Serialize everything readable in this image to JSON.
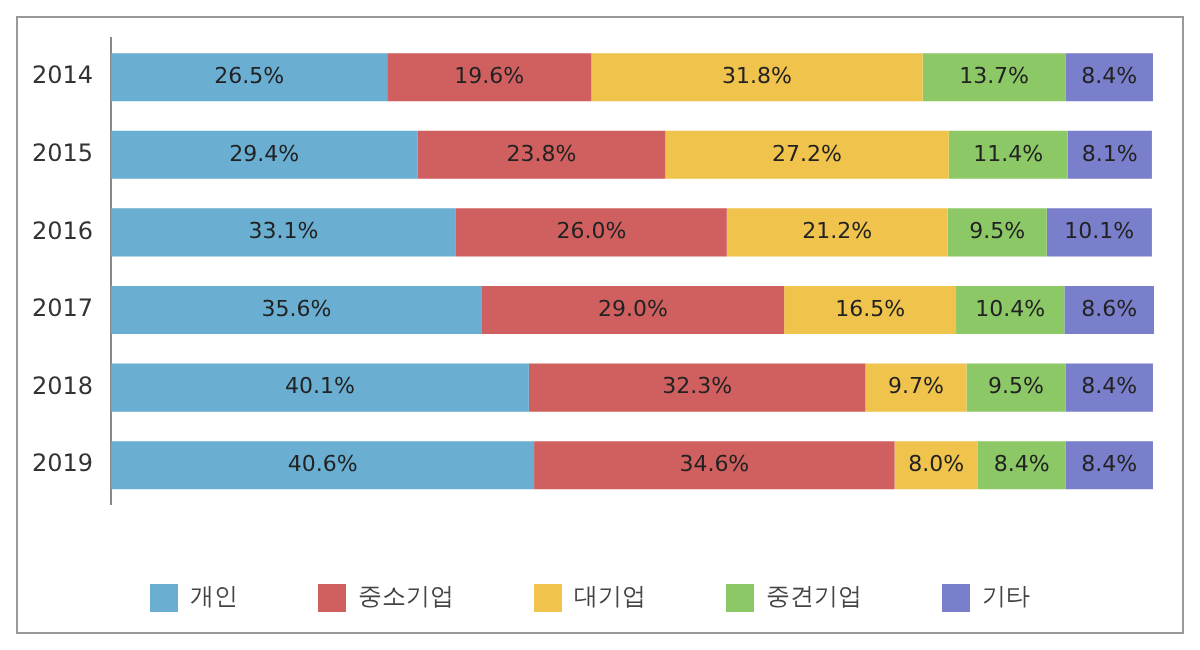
{
  "chart_data": {
    "type": "bar",
    "orientation": "horizontal",
    "stacked": true,
    "categories": [
      "2014",
      "2015",
      "2016",
      "2017",
      "2018",
      "2019"
    ],
    "legend": "bottom",
    "grid": false,
    "tick_labels": "y",
    "series": [
      {
        "name": "개인",
        "color": "#6aaed2",
        "values": [
          26.5,
          29.4,
          33.1,
          35.6,
          40.1,
          40.6
        ],
        "value_labels": [
          "26.5%",
          "29.4%",
          "33.1%",
          "35.6%",
          "40.1%",
          "40.6%"
        ]
      },
      {
        "name": "중소기업",
        "color": "#d0605f",
        "values": [
          19.6,
          23.8,
          26.0,
          29.0,
          32.3,
          34.6
        ],
        "value_labels": [
          "19.6%",
          "23.8%",
          "26.0%",
          "29.0%",
          "32.3%",
          "34.6%"
        ]
      },
      {
        "name": "대기업",
        "color": "#f0c34c",
        "values": [
          31.8,
          27.2,
          21.2,
          16.5,
          9.7,
          8.0
        ],
        "value_labels": [
          "31.8%",
          "27.2%",
          "21.2%",
          "16.5%",
          "9.7%",
          "8.0%"
        ]
      },
      {
        "name": "중견기업",
        "color": "#8cc866",
        "values": [
          13.7,
          11.4,
          9.5,
          10.4,
          9.5,
          8.4
        ],
        "value_labels": [
          "13.7%",
          "11.4%",
          "9.5%",
          "10.4%",
          "9.5%",
          "8.4%"
        ]
      },
      {
        "name": "기타",
        "color": "#7a7fcc",
        "values": [
          8.4,
          8.1,
          10.1,
          8.6,
          8.4,
          8.4
        ],
        "value_labels": [
          "8.4%",
          "8.1%",
          "10.1%",
          "8.6%",
          "8.4%",
          "8.4%"
        ]
      }
    ]
  }
}
